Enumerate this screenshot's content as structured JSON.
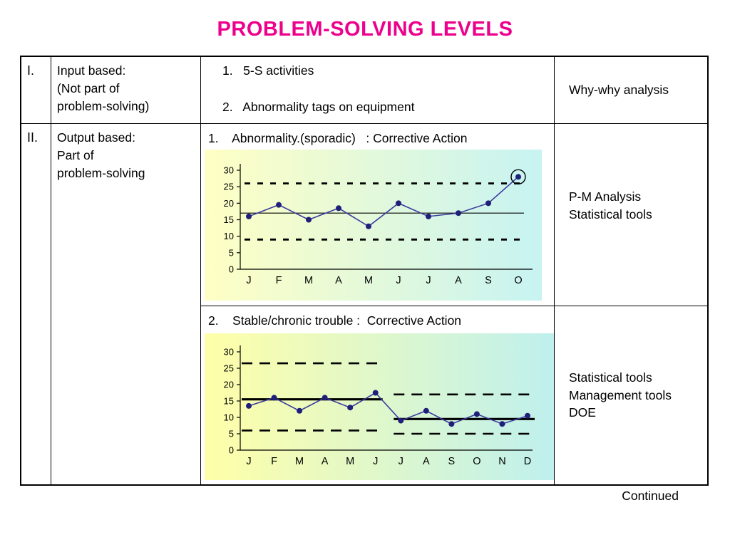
{
  "slide": {
    "title": "PROBLEM-SOLVING LEVELS",
    "title_color": "#ec008c",
    "continued": "Continued"
  },
  "table": {
    "row_I": {
      "numeral": "I.",
      "description": "Input based:\n(Not part of\nproblem-solving)",
      "items": [
        "1.   5-S activities",
        "2.   Abnormality tags on equipment"
      ],
      "tools": [
        "Why-why analysis"
      ]
    },
    "row_II": {
      "numeral": "II.",
      "description": "Output based:\nPart of\nproblem-solving",
      "sub_1": {
        "heading": "1.    Abnormality.(sporadic)   : Corrective Action",
        "tools": [
          "P-M Analysis",
          "Statistical tools"
        ]
      },
      "sub_2": {
        "heading": "2.    Stable/chronic trouble :  Corrective Action",
        "tools": [
          "Statistical tools",
          "Management tools",
          "DOE"
        ]
      }
    }
  },
  "chart_data": [
    {
      "type": "line",
      "name": "sporadic-abnormality-control-chart",
      "categories": [
        "J",
        "F",
        "M",
        "A",
        "M",
        "J",
        "J",
        "A",
        "S",
        "O"
      ],
      "values": [
        16,
        19.5,
        15,
        18.5,
        13,
        20,
        16,
        17,
        20,
        28
      ],
      "center_line": 17,
      "ucl": 26,
      "lcl": 9,
      "ylim": [
        0,
        30
      ],
      "yticks": [
        0,
        5,
        10,
        15,
        20,
        25,
        30
      ],
      "circled_point_index": 9,
      "line_color": "#3c3c9e",
      "marker_color": "#20207a",
      "bg_gradient": [
        "#ffffc4",
        "#c7f3f2"
      ]
    },
    {
      "type": "line",
      "name": "chronic-trouble-control-chart",
      "categories": [
        "J",
        "F",
        "M",
        "A",
        "M",
        "J",
        "J",
        "A",
        "S",
        "O",
        "N",
        "D"
      ],
      "values": [
        13.5,
        16,
        12,
        16,
        13,
        17.5,
        9,
        12,
        8,
        11,
        8,
        10.5
      ],
      "segments": [
        {
          "from": 0,
          "to": 5,
          "center_line": 15.5,
          "ucl": 26.5,
          "lcl": 6
        },
        {
          "from": 6,
          "to": 11,
          "center_line": 9.5,
          "ucl": 17,
          "lcl": 5
        }
      ],
      "ylim": [
        0,
        30
      ],
      "yticks": [
        0,
        5,
        10,
        15,
        20,
        25,
        30
      ],
      "line_color": "#3c3c9e",
      "marker_color": "#20207a",
      "bg_gradient": [
        "#ffffa8",
        "#bff0ee"
      ]
    }
  ]
}
